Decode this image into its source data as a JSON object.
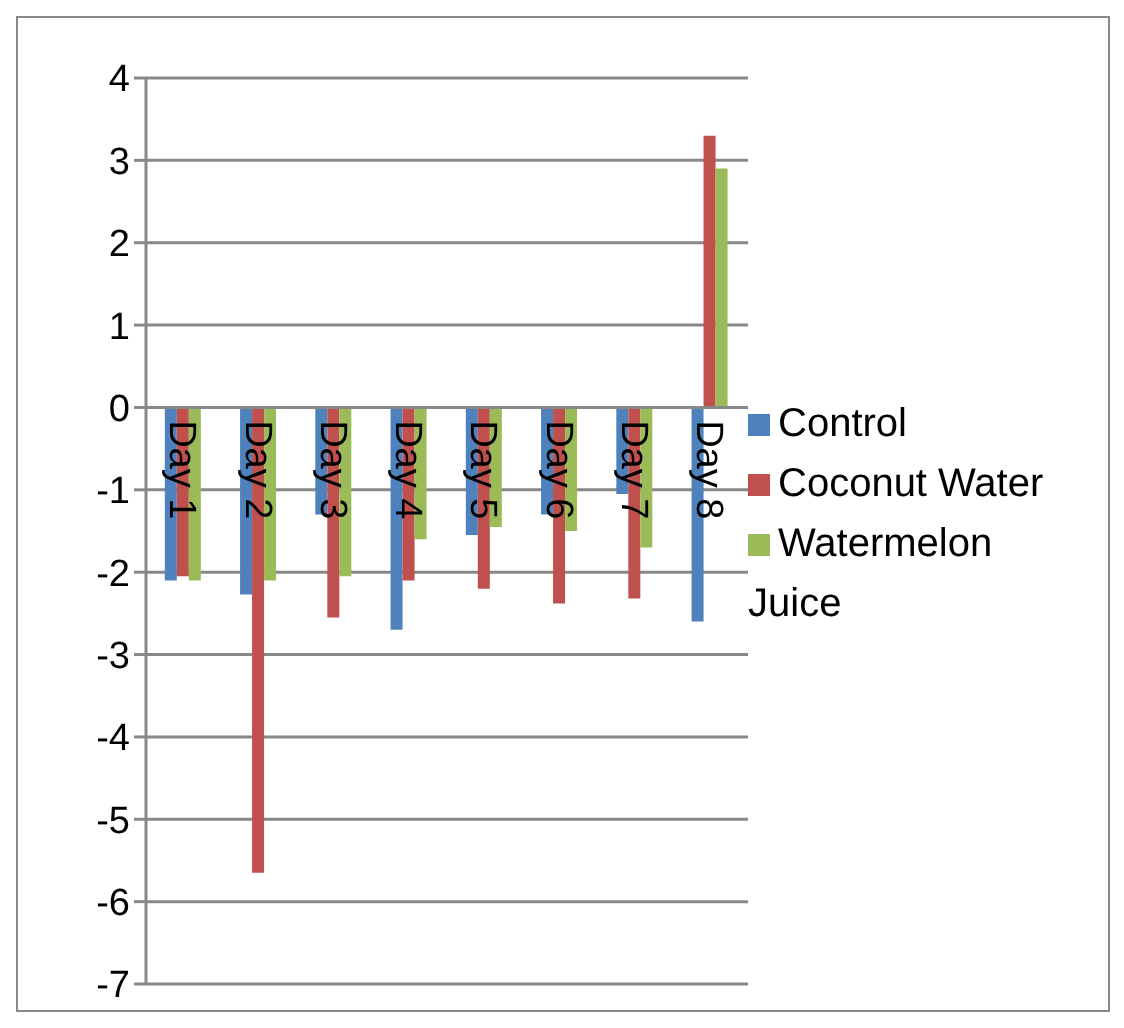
{
  "chart_data": {
    "type": "bar",
    "categories": [
      "Day 1",
      "Day 2",
      "Day 3",
      "Day 4",
      "Day 5",
      "Day 6",
      "Day 7",
      "Day 8"
    ],
    "series": [
      {
        "name": "Control",
        "color": "#4f81bd",
        "values": [
          -2.1,
          -2.27,
          -1.3,
          -2.7,
          -1.55,
          -1.3,
          -1.05,
          -2.6
        ]
      },
      {
        "name": "Coconut Water",
        "color": "#c0504d",
        "values": [
          -2.05,
          -5.65,
          -2.55,
          -2.1,
          -2.2,
          -2.38,
          -2.32,
          3.3
        ]
      },
      {
        "name": "Watermelon Juice",
        "color": "#9bbb59",
        "values": [
          -2.1,
          -2.1,
          -2.05,
          -1.6,
          -1.45,
          -1.5,
          -1.7,
          2.9
        ]
      }
    ],
    "ylim": [
      -7,
      4
    ],
    "yticks": [
      -7,
      -6,
      -5,
      -4,
      -3,
      -2,
      -1,
      0,
      1,
      2,
      3,
      4
    ],
    "grid": "y",
    "legend": "right"
  }
}
